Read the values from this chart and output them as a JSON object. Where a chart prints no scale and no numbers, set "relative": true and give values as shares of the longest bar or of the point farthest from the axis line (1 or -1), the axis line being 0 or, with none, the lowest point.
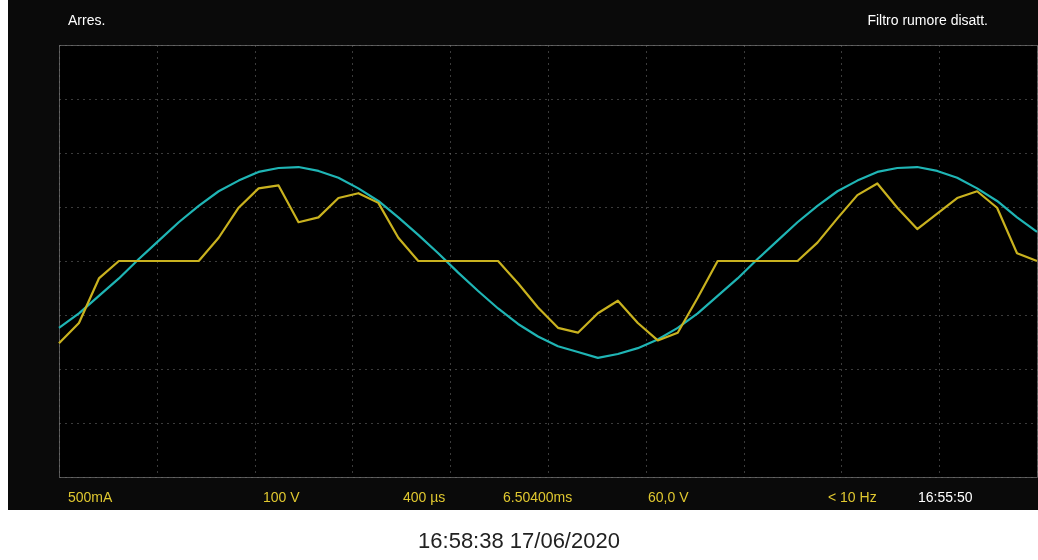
{
  "chart_data": {
    "type": "line",
    "relative": true,
    "grid": true,
    "legend": false,
    "line_style": "solid",
    "marker": "none",
    "categories": [
      null,
      null,
      null,
      null,
      null,
      null,
      null,
      null,
      null,
      null,
      null,
      null,
      null,
      null,
      null,
      null,
      null,
      null,
      null,
      null,
      null,
      null,
      null,
      null,
      null,
      null,
      null,
      null,
      null,
      null,
      null,
      null,
      null,
      null,
      null,
      null,
      null,
      null,
      null,
      null,
      null,
      null,
      null,
      null,
      null,
      null,
      null,
      null,
      null,
      null
    ],
    "series": [
      {
        "color": "#1fb5b5",
        "values": [
          -0.69,
          -0.54,
          -0.36,
          -0.18,
          0.02,
          0.21,
          0.4,
          0.57,
          0.72,
          0.83,
          0.92,
          0.96,
          0.97,
          0.93,
          0.86,
          0.75,
          0.62,
          0.45,
          0.27,
          0.08,
          -0.12,
          -0.31,
          -0.49,
          -0.65,
          -0.78,
          -0.88,
          -0.94,
          -1.0,
          -0.96,
          -0.9,
          -0.81,
          -0.69,
          -0.54,
          -0.36,
          -0.18,
          0.02,
          0.21,
          0.4,
          0.57,
          0.72,
          0.83,
          0.92,
          0.96,
          0.97,
          0.93,
          0.86,
          0.75,
          0.62,
          0.45,
          0.3
        ]
      },
      {
        "color": "#c9b21f",
        "values": [
          -0.85,
          -0.64,
          -0.18,
          0,
          0,
          0,
          0,
          0,
          0.24,
          0.55,
          0.75,
          0.78,
          0.4,
          0.45,
          0.65,
          0.7,
          0.6,
          0.24,
          0,
          0,
          0,
          0,
          0,
          -0.23,
          -0.48,
          -0.69,
          -0.74,
          -0.54,
          -0.41,
          -0.64,
          -0.82,
          -0.74,
          -0.38,
          0,
          0,
          0,
          0,
          0,
          0.19,
          0.44,
          0.68,
          0.8,
          0.55,
          0.33,
          0.49,
          0.65,
          0.72,
          0.55,
          0.08,
          0
        ]
      }
    ],
    "annotations": [
      "Arres.",
      "Filtro rumore disatt.",
      "500mA",
      "100 V",
      "400 µs",
      "6.50400ms",
      "60,0 V",
      "< 10 Hz",
      "16:55:50",
      "16:58:38   17/06/2020"
    ]
  }
}
